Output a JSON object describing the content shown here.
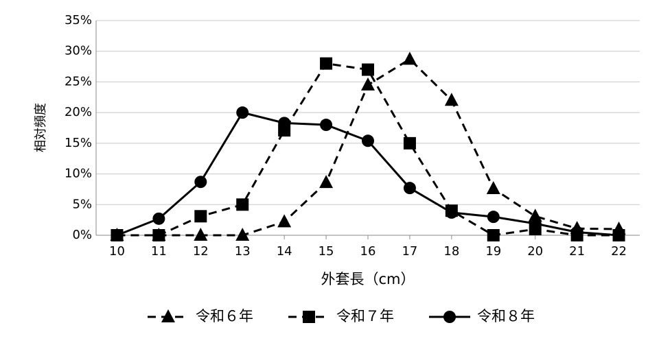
{
  "chart_data": {
    "type": "line",
    "x_label": "外套長（cm）",
    "y_label": "相対頻度",
    "x": [
      10,
      11,
      12,
      13,
      14,
      15,
      16,
      17,
      18,
      19,
      20,
      21,
      22
    ],
    "xlim": [
      9.5,
      22.5
    ],
    "ylim": [
      0,
      35
    ],
    "yticks": [
      {
        "value": 0,
        "label": "0%"
      },
      {
        "value": 5,
        "label": "5%"
      },
      {
        "value": 10,
        "label": "10%"
      },
      {
        "value": 15,
        "label": "15%"
      },
      {
        "value": 20,
        "label": "20%"
      },
      {
        "value": 25,
        "label": "25%"
      },
      {
        "value": 30,
        "label": "30%"
      },
      {
        "value": 35,
        "label": "35%"
      }
    ],
    "grid": true,
    "legend": "bottom",
    "series": [
      {
        "name": "令和６年",
        "color": "#000000",
        "marker": "triangle",
        "dash": "dashed",
        "values": [
          0,
          0,
          0,
          0,
          2.2,
          8.6,
          24.5,
          28.7,
          22,
          7.6,
          3.1,
          1.1,
          1
        ]
      },
      {
        "name": "令和７年",
        "color": "#000000",
        "marker": "square",
        "dash": "dashed",
        "values": [
          0,
          0,
          3.1,
          5,
          17.1,
          28,
          27,
          15,
          4,
          0,
          1,
          0,
          0
        ]
      },
      {
        "name": "令和８年",
        "color": "#000000",
        "marker": "circle",
        "dash": "solid",
        "values": [
          0,
          2.7,
          8.7,
          20,
          18.3,
          18,
          15.4,
          7.7,
          3.7,
          3,
          1.9,
          0.5,
          0
        ]
      }
    ]
  }
}
